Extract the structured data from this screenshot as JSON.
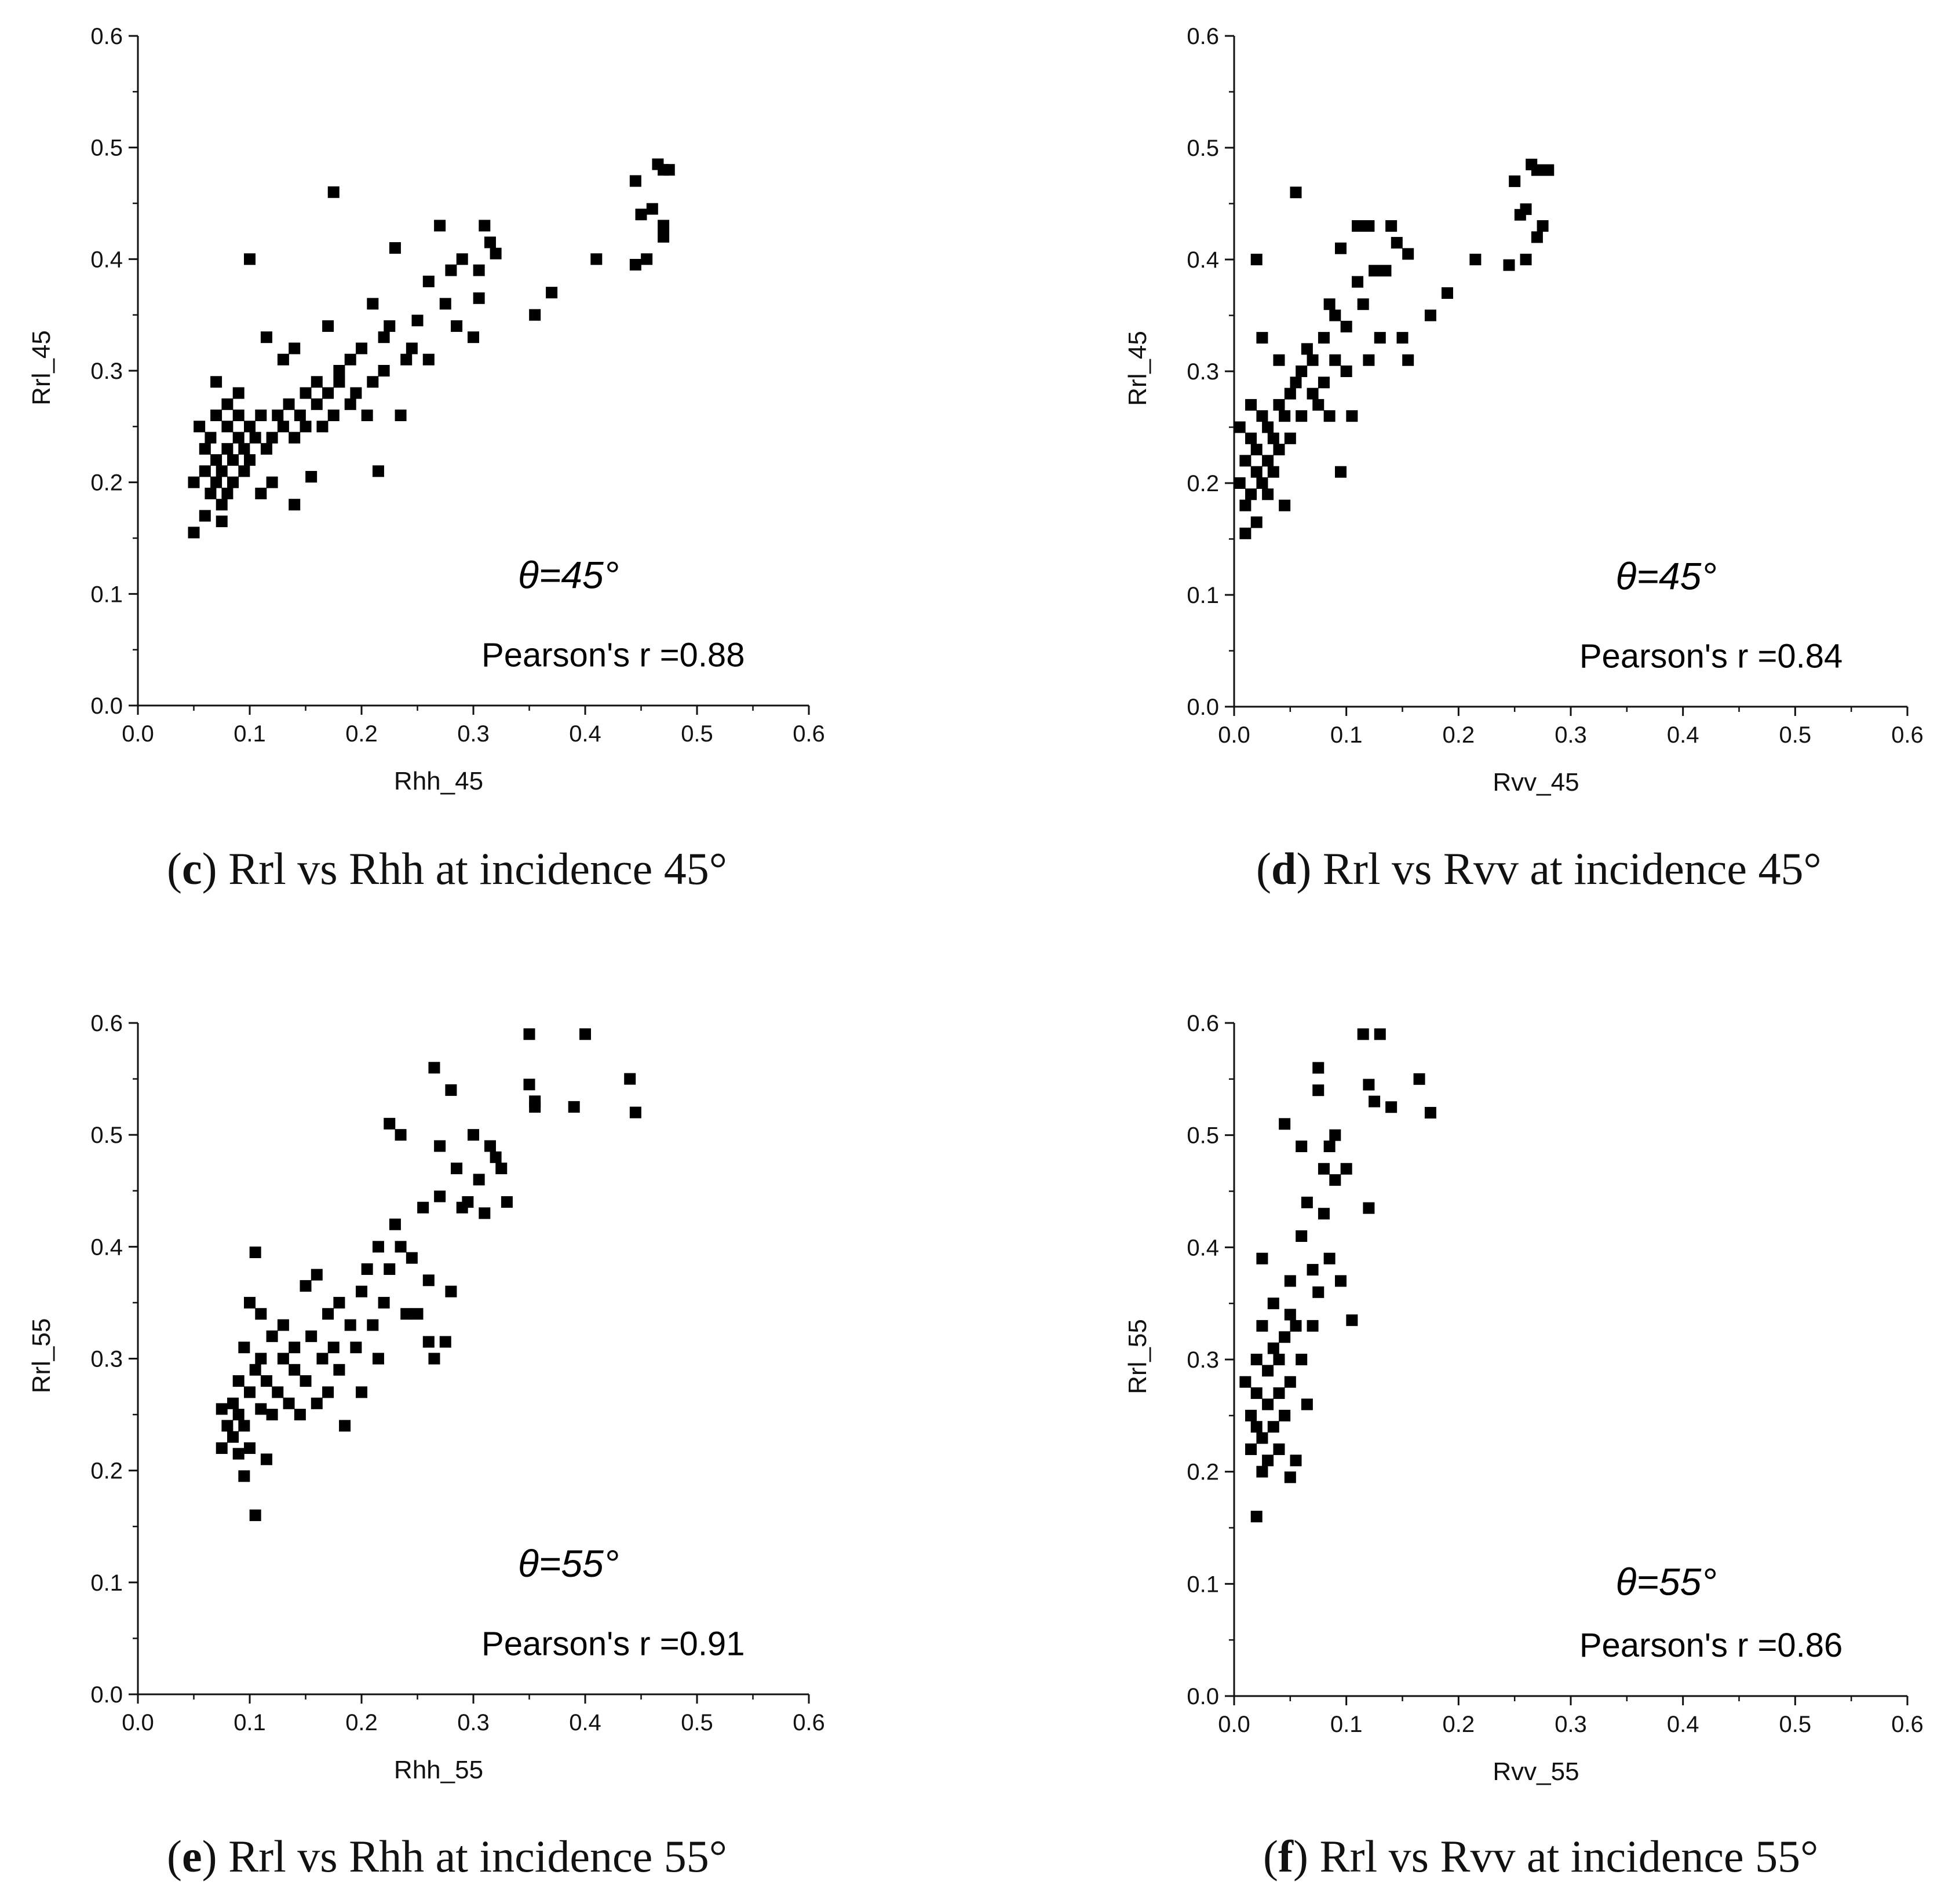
{
  "chart_data": [
    {
      "type": "scatter",
      "letter": "c",
      "caption": "Rrl vs Rhh at incidence 45°",
      "xlabel": "Rhh_45",
      "ylabel": "Rrl_45",
      "xlim": [
        0,
        0.6
      ],
      "ylim": [
        0,
        0.6
      ],
      "xticks": [
        "0.0",
        "0.1",
        "0.2",
        "0.3",
        "0.4",
        "0.5",
        "0.6"
      ],
      "yticks": [
        "0.0",
        "0.1",
        "0.2",
        "0.3",
        "0.4",
        "0.5",
        "0.6"
      ],
      "theta": "θ=45°",
      "pearson": "Pearson's r =0.88",
      "points": [
        [
          0.05,
          0.155
        ],
        [
          0.05,
          0.2
        ],
        [
          0.055,
          0.25
        ],
        [
          0.06,
          0.17
        ],
        [
          0.06,
          0.21
        ],
        [
          0.06,
          0.23
        ],
        [
          0.065,
          0.19
        ],
        [
          0.065,
          0.24
        ],
        [
          0.07,
          0.29
        ],
        [
          0.07,
          0.2
        ],
        [
          0.07,
          0.22
        ],
        [
          0.07,
          0.26
        ],
        [
          0.075,
          0.18
        ],
        [
          0.075,
          0.21
        ],
        [
          0.075,
          0.165
        ],
        [
          0.08,
          0.23
        ],
        [
          0.08,
          0.27
        ],
        [
          0.08,
          0.19
        ],
        [
          0.08,
          0.25
        ],
        [
          0.085,
          0.22
        ],
        [
          0.085,
          0.2
        ],
        [
          0.09,
          0.24
        ],
        [
          0.09,
          0.26
        ],
        [
          0.09,
          0.28
        ],
        [
          0.095,
          0.23
        ],
        [
          0.095,
          0.21
        ],
        [
          0.1,
          0.25
        ],
        [
          0.1,
          0.22
        ],
        [
          0.1,
          0.4
        ],
        [
          0.105,
          0.24
        ],
        [
          0.11,
          0.19
        ],
        [
          0.11,
          0.26
        ],
        [
          0.115,
          0.33
        ],
        [
          0.115,
          0.23
        ],
        [
          0.12,
          0.24
        ],
        [
          0.12,
          0.2
        ],
        [
          0.125,
          0.26
        ],
        [
          0.13,
          0.31
        ],
        [
          0.13,
          0.25
        ],
        [
          0.135,
          0.27
        ],
        [
          0.14,
          0.32
        ],
        [
          0.14,
          0.24
        ],
        [
          0.14,
          0.18
        ],
        [
          0.145,
          0.26
        ],
        [
          0.15,
          0.25
        ],
        [
          0.15,
          0.28
        ],
        [
          0.155,
          0.205
        ],
        [
          0.16,
          0.27
        ],
        [
          0.16,
          0.29
        ],
        [
          0.165,
          0.25
        ],
        [
          0.17,
          0.34
        ],
        [
          0.17,
          0.28
        ],
        [
          0.175,
          0.26
        ],
        [
          0.175,
          0.46
        ],
        [
          0.18,
          0.3
        ],
        [
          0.18,
          0.29
        ],
        [
          0.19,
          0.27
        ],
        [
          0.19,
          0.31
        ],
        [
          0.195,
          0.28
        ],
        [
          0.2,
          0.32
        ],
        [
          0.205,
          0.26
        ],
        [
          0.21,
          0.29
        ],
        [
          0.21,
          0.36
        ],
        [
          0.215,
          0.21
        ],
        [
          0.22,
          0.33
        ],
        [
          0.22,
          0.3
        ],
        [
          0.225,
          0.34
        ],
        [
          0.23,
          0.41
        ],
        [
          0.235,
          0.26
        ],
        [
          0.24,
          0.31
        ],
        [
          0.245,
          0.32
        ],
        [
          0.25,
          0.345
        ],
        [
          0.26,
          0.38
        ],
        [
          0.26,
          0.31
        ],
        [
          0.27,
          0.43
        ],
        [
          0.275,
          0.36
        ],
        [
          0.28,
          0.39
        ],
        [
          0.285,
          0.34
        ],
        [
          0.29,
          0.4
        ],
        [
          0.3,
          0.33
        ],
        [
          0.305,
          0.39
        ],
        [
          0.305,
          0.365
        ],
        [
          0.31,
          0.43
        ],
        [
          0.315,
          0.415
        ],
        [
          0.32,
          0.405
        ],
        [
          0.355,
          0.35
        ],
        [
          0.37,
          0.37
        ],
        [
          0.41,
          0.4
        ],
        [
          0.445,
          0.395
        ],
        [
          0.445,
          0.47
        ],
        [
          0.45,
          0.44
        ],
        [
          0.455,
          0.4
        ],
        [
          0.46,
          0.445
        ],
        [
          0.465,
          0.485
        ],
        [
          0.47,
          0.48
        ],
        [
          0.47,
          0.42
        ],
        [
          0.47,
          0.43
        ],
        [
          0.475,
          0.48
        ]
      ]
    },
    {
      "type": "scatter",
      "letter": "d",
      "caption": "Rrl vs Rvv at incidence 45°",
      "xlabel": "Rvv_45",
      "ylabel": "Rrl_45",
      "xlim": [
        0,
        0.6
      ],
      "ylim": [
        0,
        0.6
      ],
      "xticks": [
        "0.0",
        "0.1",
        "0.2",
        "0.3",
        "0.4",
        "0.5",
        "0.6"
      ],
      "yticks": [
        "0.0",
        "0.1",
        "0.2",
        "0.3",
        "0.4",
        "0.5",
        "0.6"
      ],
      "theta": "θ=45°",
      "pearson": "Pearson's r =0.84",
      "points": [
        [
          0.005,
          0.2
        ],
        [
          0.005,
          0.25
        ],
        [
          0.01,
          0.155
        ],
        [
          0.01,
          0.18
        ],
        [
          0.01,
          0.22
        ],
        [
          0.015,
          0.27
        ],
        [
          0.015,
          0.19
        ],
        [
          0.015,
          0.24
        ],
        [
          0.02,
          0.21
        ],
        [
          0.02,
          0.23
        ],
        [
          0.02,
          0.4
        ],
        [
          0.02,
          0.165
        ],
        [
          0.025,
          0.26
        ],
        [
          0.025,
          0.2
        ],
        [
          0.025,
          0.33
        ],
        [
          0.03,
          0.22
        ],
        [
          0.03,
          0.25
        ],
        [
          0.03,
          0.19
        ],
        [
          0.035,
          0.24
        ],
        [
          0.035,
          0.21
        ],
        [
          0.04,
          0.27
        ],
        [
          0.04,
          0.23
        ],
        [
          0.04,
          0.31
        ],
        [
          0.045,
          0.26
        ],
        [
          0.045,
          0.18
        ],
        [
          0.05,
          0.28
        ],
        [
          0.05,
          0.24
        ],
        [
          0.055,
          0.46
        ],
        [
          0.055,
          0.29
        ],
        [
          0.06,
          0.3
        ],
        [
          0.06,
          0.26
        ],
        [
          0.065,
          0.32
        ],
        [
          0.07,
          0.28
        ],
        [
          0.07,
          0.31
        ],
        [
          0.075,
          0.27
        ],
        [
          0.08,
          0.33
        ],
        [
          0.08,
          0.29
        ],
        [
          0.085,
          0.36
        ],
        [
          0.085,
          0.26
        ],
        [
          0.09,
          0.35
        ],
        [
          0.09,
          0.31
        ],
        [
          0.095,
          0.41
        ],
        [
          0.095,
          0.21
        ],
        [
          0.1,
          0.34
        ],
        [
          0.1,
          0.3
        ],
        [
          0.105,
          0.26
        ],
        [
          0.11,
          0.38
        ],
        [
          0.11,
          0.43
        ],
        [
          0.115,
          0.36
        ],
        [
          0.12,
          0.43
        ],
        [
          0.12,
          0.31
        ],
        [
          0.125,
          0.39
        ],
        [
          0.13,
          0.33
        ],
        [
          0.135,
          0.39
        ],
        [
          0.14,
          0.43
        ],
        [
          0.145,
          0.415
        ],
        [
          0.15,
          0.33
        ],
        [
          0.155,
          0.405
        ],
        [
          0.155,
          0.31
        ],
        [
          0.175,
          0.35
        ],
        [
          0.19,
          0.37
        ],
        [
          0.215,
          0.4
        ],
        [
          0.245,
          0.395
        ],
        [
          0.25,
          0.47
        ],
        [
          0.255,
          0.44
        ],
        [
          0.26,
          0.4
        ],
        [
          0.26,
          0.445
        ],
        [
          0.265,
          0.485
        ],
        [
          0.27,
          0.48
        ],
        [
          0.27,
          0.42
        ],
        [
          0.275,
          0.43
        ],
        [
          0.28,
          0.48
        ]
      ]
    },
    {
      "type": "scatter",
      "letter": "e",
      "caption": "Rrl vs Rhh at incidence 55°",
      "xlabel": "Rhh_55",
      "ylabel": "Rrl_55",
      "xlim": [
        0,
        0.6
      ],
      "ylim": [
        0,
        0.6
      ],
      "xticks": [
        "0.0",
        "0.1",
        "0.2",
        "0.3",
        "0.4",
        "0.5",
        "0.6"
      ],
      "yticks": [
        "0.0",
        "0.1",
        "0.2",
        "0.3",
        "0.4",
        "0.5",
        "0.6"
      ],
      "theta": "θ=55°",
      "pearson": "Pearson's r =0.91",
      "points": [
        [
          0.075,
          0.255
        ],
        [
          0.075,
          0.22
        ],
        [
          0.08,
          0.24
        ],
        [
          0.085,
          0.26
        ],
        [
          0.085,
          0.23
        ],
        [
          0.09,
          0.215
        ],
        [
          0.09,
          0.25
        ],
        [
          0.09,
          0.28
        ],
        [
          0.095,
          0.195
        ],
        [
          0.095,
          0.31
        ],
        [
          0.095,
          0.24
        ],
        [
          0.1,
          0.27
        ],
        [
          0.1,
          0.35
        ],
        [
          0.1,
          0.22
        ],
        [
          0.105,
          0.29
        ],
        [
          0.105,
          0.395
        ],
        [
          0.105,
          0.16
        ],
        [
          0.11,
          0.255
        ],
        [
          0.11,
          0.3
        ],
        [
          0.11,
          0.34
        ],
        [
          0.115,
          0.21
        ],
        [
          0.115,
          0.28
        ],
        [
          0.12,
          0.32
        ],
        [
          0.12,
          0.25
        ],
        [
          0.125,
          0.27
        ],
        [
          0.13,
          0.3
        ],
        [
          0.13,
          0.33
        ],
        [
          0.135,
          0.26
        ],
        [
          0.14,
          0.29
        ],
        [
          0.14,
          0.31
        ],
        [
          0.145,
          0.25
        ],
        [
          0.15,
          0.365
        ],
        [
          0.15,
          0.28
        ],
        [
          0.155,
          0.32
        ],
        [
          0.16,
          0.26
        ],
        [
          0.16,
          0.375
        ],
        [
          0.165,
          0.3
        ],
        [
          0.17,
          0.34
        ],
        [
          0.17,
          0.27
        ],
        [
          0.175,
          0.31
        ],
        [
          0.18,
          0.35
        ],
        [
          0.18,
          0.29
        ],
        [
          0.185,
          0.24
        ],
        [
          0.19,
          0.33
        ],
        [
          0.195,
          0.31
        ],
        [
          0.2,
          0.27
        ],
        [
          0.2,
          0.36
        ],
        [
          0.205,
          0.38
        ],
        [
          0.21,
          0.33
        ],
        [
          0.215,
          0.4
        ],
        [
          0.215,
          0.3
        ],
        [
          0.22,
          0.35
        ],
        [
          0.225,
          0.51
        ],
        [
          0.225,
          0.38
        ],
        [
          0.23,
          0.42
        ],
        [
          0.235,
          0.5
        ],
        [
          0.235,
          0.4
        ],
        [
          0.24,
          0.34
        ],
        [
          0.245,
          0.39
        ],
        [
          0.25,
          0.34
        ],
        [
          0.255,
          0.435
        ],
        [
          0.26,
          0.37
        ],
        [
          0.26,
          0.315
        ],
        [
          0.265,
          0.56
        ],
        [
          0.265,
          0.3
        ],
        [
          0.27,
          0.445
        ],
        [
          0.27,
          0.49
        ],
        [
          0.275,
          0.315
        ],
        [
          0.28,
          0.36
        ],
        [
          0.28,
          0.54
        ],
        [
          0.285,
          0.47
        ],
        [
          0.29,
          0.435
        ],
        [
          0.295,
          0.44
        ],
        [
          0.3,
          0.5
        ],
        [
          0.305,
          0.46
        ],
        [
          0.31,
          0.43
        ],
        [
          0.315,
          0.49
        ],
        [
          0.32,
          0.48
        ],
        [
          0.325,
          0.47
        ],
        [
          0.33,
          0.44
        ],
        [
          0.35,
          0.59
        ],
        [
          0.35,
          0.545
        ],
        [
          0.355,
          0.53
        ],
        [
          0.355,
          0.525
        ],
        [
          0.39,
          0.525
        ],
        [
          0.4,
          0.59
        ],
        [
          0.44,
          0.55
        ],
        [
          0.445,
          0.52
        ]
      ]
    },
    {
      "type": "scatter",
      "letter": "f",
      "caption": "Rrl vs Rvv at incidence 55°",
      "xlabel": "Rvv_55",
      "ylabel": "Rrl_55",
      "xlim": [
        0,
        0.6
      ],
      "ylim": [
        0,
        0.6
      ],
      "xticks": [
        "0.0",
        "0.1",
        "0.2",
        "0.3",
        "0.4",
        "0.5",
        "0.6"
      ],
      "yticks": [
        "0.0",
        "0.1",
        "0.2",
        "0.3",
        "0.4",
        "0.5",
        "0.6"
      ],
      "theta": "θ=55°",
      "pearson": "Pearson's r =0.86",
      "points": [
        [
          0.01,
          0.28
        ],
        [
          0.015,
          0.22
        ],
        [
          0.015,
          0.25
        ],
        [
          0.02,
          0.3
        ],
        [
          0.02,
          0.16
        ],
        [
          0.02,
          0.24
        ],
        [
          0.02,
          0.27
        ],
        [
          0.025,
          0.2
        ],
        [
          0.025,
          0.33
        ],
        [
          0.025,
          0.39
        ],
        [
          0.025,
          0.23
        ],
        [
          0.03,
          0.26
        ],
        [
          0.03,
          0.29
        ],
        [
          0.03,
          0.21
        ],
        [
          0.035,
          0.31
        ],
        [
          0.035,
          0.24
        ],
        [
          0.035,
          0.35
        ],
        [
          0.04,
          0.27
        ],
        [
          0.04,
          0.22
        ],
        [
          0.04,
          0.3
        ],
        [
          0.045,
          0.25
        ],
        [
          0.045,
          0.32
        ],
        [
          0.045,
          0.51
        ],
        [
          0.05,
          0.28
        ],
        [
          0.05,
          0.195
        ],
        [
          0.05,
          0.37
        ],
        [
          0.05,
          0.34
        ],
        [
          0.055,
          0.21
        ],
        [
          0.055,
          0.33
        ],
        [
          0.06,
          0.41
        ],
        [
          0.06,
          0.3
        ],
        [
          0.06,
          0.49
        ],
        [
          0.065,
          0.44
        ],
        [
          0.065,
          0.26
        ],
        [
          0.07,
          0.38
        ],
        [
          0.07,
          0.33
        ],
        [
          0.075,
          0.56
        ],
        [
          0.075,
          0.54
        ],
        [
          0.075,
          0.36
        ],
        [
          0.08,
          0.43
        ],
        [
          0.08,
          0.47
        ],
        [
          0.085,
          0.39
        ],
        [
          0.085,
          0.49
        ],
        [
          0.09,
          0.5
        ],
        [
          0.09,
          0.46
        ],
        [
          0.095,
          0.37
        ],
        [
          0.1,
          0.47
        ],
        [
          0.105,
          0.335
        ],
        [
          0.115,
          0.59
        ],
        [
          0.12,
          0.545
        ],
        [
          0.12,
          0.435
        ],
        [
          0.125,
          0.53
        ],
        [
          0.13,
          0.59
        ],
        [
          0.14,
          0.525
        ],
        [
          0.165,
          0.55
        ],
        [
          0.175,
          0.52
        ]
      ]
    }
  ]
}
